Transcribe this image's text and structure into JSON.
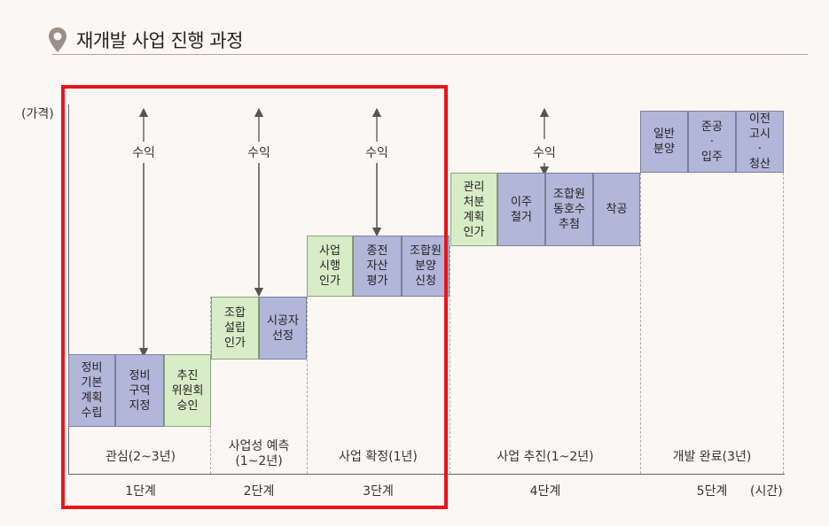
{
  "header": {
    "title": "재개발 사업 진행 과정",
    "icon": "map-pin-icon"
  },
  "axes": {
    "y_label": "(가격)",
    "x_label": "(시간)"
  },
  "profit_label": "수익",
  "steps": {
    "s1": "정비\n기본\n계획\n수립",
    "s2": "정비\n구역\n지정",
    "s3": "추진\n위원회\n승인",
    "s4": "조합\n설립\n인가",
    "s5": "시공자\n선정",
    "s6": "사업\n시행\n인가",
    "s7": "종전\n자산\n평가",
    "s8": "조합원\n분양\n신청",
    "s9": "관리\n처분\n계획\n인가",
    "s10": "이주\n철거",
    "s11": "조합원\n동호수\n추첨",
    "s12": "착공",
    "s13": "일반\n분양",
    "s14": "준공\n·\n입주",
    "s15": "이전\n고시\n·\n청산"
  },
  "phases": {
    "p1": "관심(2~3년)",
    "p2": "사업성 예측\n(1~2년)",
    "p3": "사업 확정(1년)",
    "p4": "사업 추진(1~2년)",
    "p5": "개발 완료(3년)"
  },
  "stages": {
    "st1": "1단계",
    "st2": "2단계",
    "st3": "3단계",
    "st4": "4단계",
    "st5": "5단계"
  },
  "colors": {
    "step_blue": "#b2b7d9",
    "step_green": "#d9ecc8",
    "highlight": "#e8141b"
  }
}
